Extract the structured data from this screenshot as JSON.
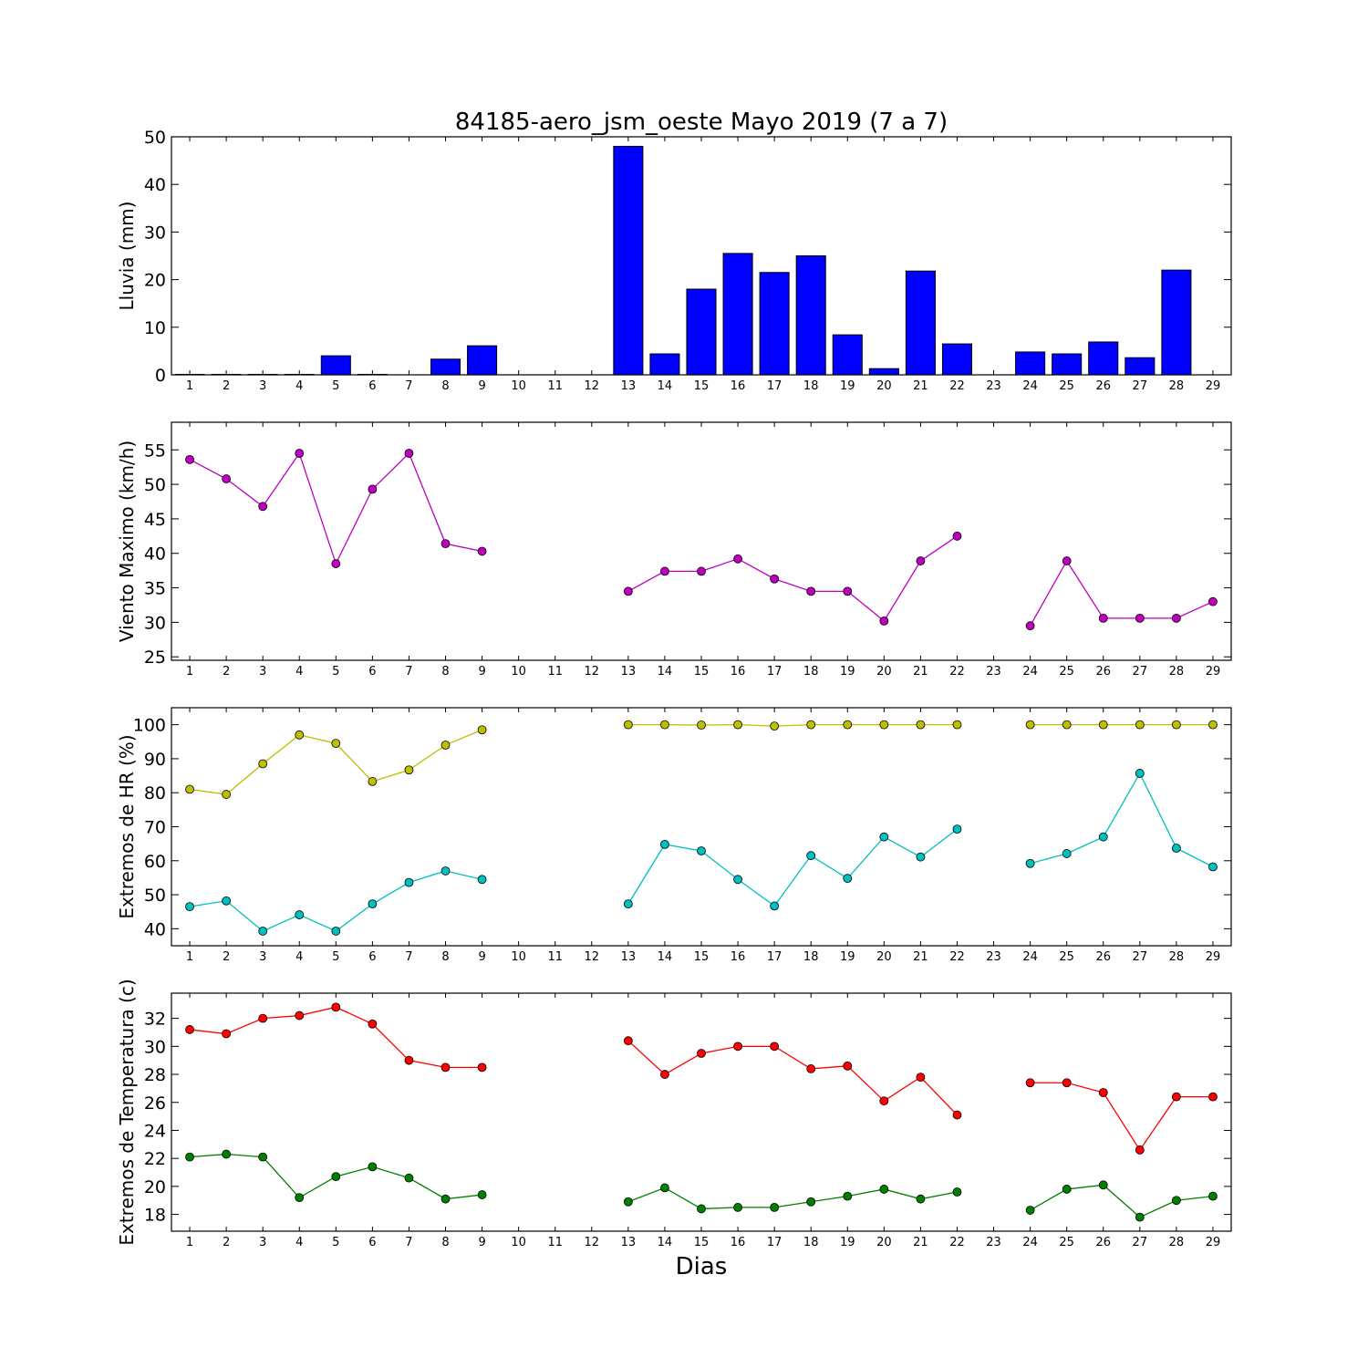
{
  "title": "84185-aero_jsm_oeste Mayo 2019  (7 a 7)",
  "xlabel": "Dias",
  "days": [
    1,
    2,
    3,
    4,
    5,
    6,
    7,
    8,
    9,
    10,
    11,
    12,
    13,
    14,
    15,
    16,
    17,
    18,
    19,
    20,
    21,
    22,
    23,
    24,
    25,
    26,
    27,
    28,
    29
  ],
  "colors": {
    "rain": "#0000ff",
    "wind": "#bf00bf",
    "hr_max": "#bfbf00",
    "hr_min": "#00bfbf",
    "temp_max": "#ff0000",
    "temp_min": "#008000"
  },
  "chart_data": [
    {
      "type": "bar",
      "ylabel": "Lluvia (mm)",
      "ylim": [
        0,
        50
      ],
      "yticks": [
        0,
        10,
        20,
        30,
        40,
        50
      ],
      "categories": [
        1,
        2,
        3,
        4,
        5,
        6,
        7,
        8,
        9,
        10,
        11,
        12,
        13,
        14,
        15,
        16,
        17,
        18,
        19,
        20,
        21,
        22,
        23,
        24,
        25,
        26,
        27,
        28,
        29
      ],
      "values": [
        0.1,
        0.1,
        0.1,
        0.1,
        4.0,
        0.1,
        0,
        3.3,
        6.1,
        0,
        0,
        0,
        48.0,
        4.4,
        18.0,
        25.5,
        21.5,
        25.0,
        8.4,
        1.3,
        21.8,
        6.5,
        0,
        4.8,
        4.4,
        6.9,
        3.6,
        22.0,
        0
      ]
    },
    {
      "type": "line",
      "ylabel": "Viento Maximo (km/h)",
      "ylim": [
        24.5,
        59
      ],
      "yticks": [
        25,
        30,
        35,
        40,
        45,
        50,
        55
      ],
      "series": [
        {
          "values": [
            53.6,
            50.8,
            46.8,
            54.5,
            38.5,
            49.3,
            54.5,
            41.4,
            40.3,
            null,
            null,
            null,
            34.5,
            37.4,
            37.4,
            39.2,
            36.3,
            34.5,
            34.5,
            30.2,
            38.9,
            42.5,
            null,
            29.5,
            38.9,
            30.6,
            30.6,
            30.6,
            33.0
          ]
        }
      ]
    },
    {
      "type": "line",
      "ylabel": "Extremos de HR (%)",
      "ylim": [
        35,
        105
      ],
      "yticks": [
        40,
        50,
        60,
        70,
        80,
        90,
        100
      ],
      "series": [
        {
          "values": [
            81,
            79.5,
            88.5,
            97,
            94.5,
            83.3,
            86.7,
            94,
            98.5,
            null,
            null,
            null,
            100,
            100,
            99.9,
            100,
            99.6,
            100,
            100,
            100,
            100,
            100,
            null,
            100,
            100,
            100,
            100,
            100,
            100
          ]
        },
        {
          "values": [
            46.5,
            48.2,
            39.3,
            44.1,
            39.3,
            47.3,
            53.6,
            57,
            54.5,
            null,
            null,
            null,
            47.3,
            64.8,
            62.9,
            54.5,
            46.7,
            61.5,
            54.8,
            67,
            61.1,
            69.3,
            null,
            59.2,
            62.1,
            67,
            85.7,
            63.7,
            58.2
          ]
        }
      ]
    },
    {
      "type": "line",
      "ylabel": "Extremos de Temperatura (c)",
      "ylim": [
        16.8,
        33.8
      ],
      "yticks": [
        18,
        20,
        22,
        24,
        26,
        28,
        30,
        32
      ],
      "series": [
        {
          "values": [
            31.2,
            30.9,
            32,
            32.2,
            32.8,
            31.6,
            29.0,
            28.5,
            28.5,
            null,
            null,
            null,
            30.4,
            28,
            29.5,
            30,
            30,
            28.4,
            28.6,
            26.1,
            27.8,
            25.1,
            null,
            27.4,
            27.4,
            26.7,
            22.6,
            26.4,
            26.4
          ]
        },
        {
          "values": [
            22.1,
            22.3,
            22.1,
            19.2,
            20.7,
            21.4,
            20.6,
            19.1,
            19.4,
            null,
            null,
            null,
            18.9,
            19.9,
            18.4,
            18.5,
            18.5,
            18.9,
            19.3,
            19.8,
            19.1,
            19.6,
            null,
            18.3,
            19.8,
            20.1,
            17.8,
            19,
            19.3
          ]
        }
      ]
    }
  ]
}
